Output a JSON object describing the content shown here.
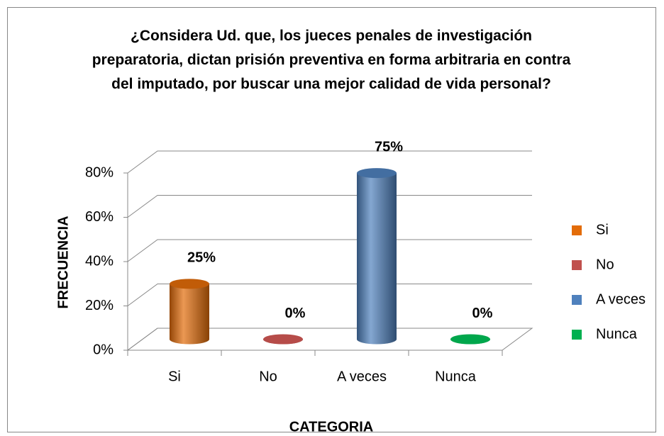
{
  "chart_data": {
    "type": "bar3d",
    "title": "¿Considera Ud. que, los jueces penales de investigación preparatoria, dictan prisión preventiva en forma arbitraria en contra del imputado, por buscar una mejor calidad de vida personal?",
    "x_label": "CATEGORIA",
    "y_label": "FRECUENCIA",
    "categories": [
      "Si",
      "No",
      "A veces",
      "Nunca"
    ],
    "values": [
      25,
      0,
      75,
      0
    ],
    "value_labels": [
      "25%",
      "0%",
      "75%",
      "0%"
    ],
    "colors": [
      "#e36c09",
      "#c0504d",
      "#4f81bd",
      "#00b050"
    ],
    "ylim": [
      0,
      80
    ],
    "yticks": [
      {
        "value": 0,
        "label": "0%"
      },
      {
        "value": 20,
        "label": "20%"
      },
      {
        "value": 40,
        "label": "40%"
      },
      {
        "value": 60,
        "label": "60%"
      },
      {
        "value": 80,
        "label": "80%"
      }
    ],
    "grid": true,
    "legend": "right"
  }
}
